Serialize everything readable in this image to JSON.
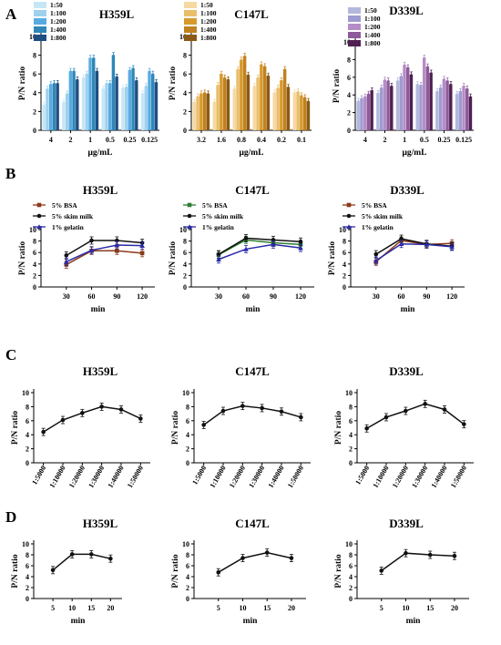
{
  "figure": {
    "panels": [
      {
        "letter": "A"
      },
      {
        "letter": "B"
      },
      {
        "letter": "C"
      },
      {
        "letter": "D"
      }
    ]
  },
  "chart_data": [
    {
      "id": "A1",
      "panel": "A",
      "type": "bar",
      "title": "H359L",
      "xlabel": "μg/mL",
      "ylabel": "P/N ratio",
      "categories": [
        "4",
        "2",
        "1",
        "0.5",
        "0.25",
        "0.125"
      ],
      "ylim": [
        0,
        10
      ],
      "yticks": [
        0,
        2,
        4,
        6,
        8,
        10
      ],
      "legend": "top-left",
      "grid": false,
      "series": [
        {
          "name": "1:50",
          "color": "#c6e6f6",
          "values": [
            2.7,
            3.0,
            5.6,
            4.4,
            4.5,
            3.9
          ]
        },
        {
          "name": "1:100",
          "color": "#9ed1ee",
          "values": [
            4.4,
            3.9,
            6.0,
            5.0,
            4.6,
            4.7
          ]
        },
        {
          "name": "1:200",
          "color": "#58abe0",
          "values": [
            4.9,
            6.3,
            7.7,
            5.0,
            6.4,
            6.3
          ]
        },
        {
          "name": "1:400",
          "color": "#2e87b8",
          "values": [
            5.0,
            6.3,
            7.7,
            8.0,
            6.6,
            6.0
          ]
        },
        {
          "name": "1:800",
          "color": "#1f4e82",
          "values": [
            5.0,
            5.4,
            6.3,
            5.7,
            5.3,
            5.1
          ]
        }
      ]
    },
    {
      "id": "A2",
      "panel": "A",
      "type": "bar",
      "title": "C147L",
      "xlabel": "μg/mL",
      "ylabel": "P/N ratio",
      "categories": [
        "3.2",
        "1.6",
        "0.8",
        "0.4",
        "0.2",
        "0.1"
      ],
      "ylim": [
        0,
        10
      ],
      "yticks": [
        0,
        2,
        4,
        6,
        8,
        10
      ],
      "legend": "top-left",
      "grid": false,
      "series": [
        {
          "name": "1:50",
          "color": "#f6d9a2",
          "values": [
            3.0,
            3.0,
            4.4,
            4.7,
            4.0,
            4.0
          ]
        },
        {
          "name": "1:100",
          "color": "#e9be6b",
          "values": [
            3.6,
            4.8,
            6.5,
            5.6,
            4.5,
            4.1
          ]
        },
        {
          "name": "1:200",
          "color": "#d79a2e",
          "values": [
            3.9,
            6.0,
            7.5,
            7.0,
            5.3,
            3.7
          ]
        },
        {
          "name": "1:400",
          "color": "#c0821f",
          "values": [
            4.0,
            5.6,
            7.9,
            6.8,
            6.5,
            3.5
          ]
        },
        {
          "name": "1:800",
          "color": "#8a5a16",
          "values": [
            3.9,
            5.4,
            5.9,
            5.8,
            4.6,
            3.1
          ]
        }
      ]
    },
    {
      "id": "A3",
      "panel": "A",
      "type": "bar",
      "title": "D339L",
      "xlabel": "μg/mL",
      "ylabel": "P/N ratio",
      "categories": [
        "4",
        "2",
        "1",
        "0.5",
        "0.25",
        "0.125"
      ],
      "ylim": [
        0,
        10
      ],
      "yticks": [
        0,
        2,
        4,
        6,
        8,
        10
      ],
      "legend": "top-left",
      "grid": false,
      "series": [
        {
          "name": "1:50",
          "color": "#b3b8dc",
          "values": [
            3.3,
            4.2,
            5.6,
            5.2,
            4.4,
            4.1
          ]
        },
        {
          "name": "1:100",
          "color": "#9d9bd1",
          "values": [
            3.6,
            4.8,
            6.1,
            5.1,
            4.8,
            4.4
          ]
        },
        {
          "name": "1:200",
          "color": "#b58dc6",
          "values": [
            3.8,
            5.7,
            7.4,
            8.2,
            5.8,
            5.0
          ]
        },
        {
          "name": "1:400",
          "color": "#8d5b99",
          "values": [
            4.1,
            5.6,
            7.1,
            7.2,
            5.6,
            4.7
          ]
        },
        {
          "name": "1:800",
          "color": "#4f1f52",
          "values": [
            4.5,
            5.0,
            6.3,
            6.5,
            5.2,
            3.8
          ]
        }
      ]
    },
    {
      "id": "B1",
      "panel": "B",
      "type": "line",
      "title": "H359L",
      "xlabel": "min",
      "ylabel": "P/N ratio",
      "x": [
        30,
        60,
        90,
        120
      ],
      "xlim": [
        0,
        135
      ],
      "xticks": [
        30,
        60,
        90,
        120
      ],
      "ylim": [
        0,
        10
      ],
      "yticks": [
        0,
        2,
        4,
        6,
        8,
        10
      ],
      "legend": "top-left",
      "grid": false,
      "series": [
        {
          "name": "5% BSA",
          "color": "#8b3a1a",
          "marker": "square",
          "values": [
            3.9,
            6.3,
            6.3,
            5.9
          ]
        },
        {
          "name": "5% skim milk",
          "color": "#111111",
          "marker": "circle",
          "values": [
            5.5,
            8.1,
            8.1,
            7.7
          ]
        },
        {
          "name": "1% gelatin",
          "color": "#2a2aa8",
          "marker": "triangle",
          "values": [
            4.4,
            6.4,
            7.3,
            7.2
          ]
        }
      ]
    },
    {
      "id": "B2",
      "panel": "B",
      "type": "line",
      "title": "C147L",
      "xlabel": "min",
      "ylabel": "P/N ratio",
      "x": [
        30,
        60,
        90,
        120
      ],
      "xlim": [
        0,
        135
      ],
      "xticks": [
        30,
        60,
        90,
        120
      ],
      "ylim": [
        0,
        10
      ],
      "yticks": [
        0,
        2,
        4,
        6,
        8,
        10
      ],
      "legend": "top-left",
      "grid": false,
      "series": [
        {
          "name": "5% BSA",
          "color": "#2e7d32",
          "marker": "square",
          "values": [
            5.6,
            8.2,
            7.7,
            7.4
          ]
        },
        {
          "name": "5% skim milk",
          "color": "#111111",
          "marker": "circle",
          "values": [
            5.7,
            8.5,
            8.2,
            7.9
          ]
        },
        {
          "name": "1% gelatin",
          "color": "#2a2aa8",
          "marker": "triangle",
          "values": [
            4.8,
            6.6,
            7.4,
            6.8
          ]
        }
      ]
    },
    {
      "id": "B3",
      "panel": "B",
      "type": "line",
      "title": "D339L",
      "xlabel": "min",
      "ylabel": "P/N ratio",
      "x": [
        30,
        60,
        90,
        120
      ],
      "xlim": [
        0,
        135
      ],
      "xticks": [
        30,
        60,
        90,
        120
      ],
      "ylim": [
        0,
        10
      ],
      "yticks": [
        0,
        2,
        4,
        6,
        8,
        10
      ],
      "legend": "top-left",
      "grid": false,
      "series": [
        {
          "name": "5% BSA",
          "color": "#8b3a1a",
          "marker": "square",
          "values": [
            4.4,
            8.1,
            7.4,
            7.6
          ]
        },
        {
          "name": "5% skim milk",
          "color": "#111111",
          "marker": "circle",
          "values": [
            5.7,
            8.4,
            7.5,
            7.1
          ]
        },
        {
          "name": "1% gelatin",
          "color": "#2a2aa8",
          "marker": "triangle",
          "values": [
            4.6,
            7.5,
            7.4,
            7.0
          ]
        }
      ]
    },
    {
      "id": "C1",
      "panel": "C",
      "type": "line",
      "title": "H359L",
      "xlabel": "",
      "ylabel": "P/N ratio",
      "categories": [
        "1:5000",
        "1:10000",
        "1:20000",
        "1:30000",
        "1:40000",
        "1:50000"
      ],
      "ylim": [
        0,
        10
      ],
      "yticks": [
        0,
        2,
        4,
        6,
        8,
        10
      ],
      "grid": false,
      "series": [
        {
          "color": "#111111",
          "marker": "circle",
          "values": [
            4.4,
            6.1,
            7.1,
            8.0,
            7.6,
            6.3
          ]
        }
      ]
    },
    {
      "id": "C2",
      "panel": "C",
      "type": "line",
      "title": "C147L",
      "xlabel": "",
      "ylabel": "P/N ratio",
      "categories": [
        "1:5000",
        "1:10000",
        "1:20000",
        "1:30000",
        "1:40000",
        "1:50000"
      ],
      "ylim": [
        0,
        10
      ],
      "yticks": [
        0,
        2,
        4,
        6,
        8,
        10
      ],
      "grid": false,
      "series": [
        {
          "color": "#111111",
          "marker": "circle",
          "values": [
            5.4,
            7.4,
            8.1,
            7.8,
            7.3,
            6.5
          ]
        }
      ]
    },
    {
      "id": "C3",
      "panel": "C",
      "type": "line",
      "title": "D339L",
      "xlabel": "",
      "ylabel": "P/N ratio",
      "categories": [
        "1:5000",
        "1:10000",
        "1:20000",
        "1:30000",
        "1:40000",
        "1:50000"
      ],
      "ylim": [
        0,
        10
      ],
      "yticks": [
        0,
        2,
        4,
        6,
        8,
        10
      ],
      "grid": false,
      "series": [
        {
          "color": "#111111",
          "marker": "circle",
          "values": [
            4.9,
            6.5,
            7.4,
            8.4,
            7.6,
            5.5
          ]
        }
      ]
    },
    {
      "id": "D1",
      "panel": "D",
      "type": "line",
      "title": "H359L",
      "xlabel": "min",
      "ylabel": "P/N ratio",
      "x": [
        5,
        10,
        15,
        20
      ],
      "xlim": [
        0,
        23
      ],
      "xticks": [
        5,
        10,
        15,
        20
      ],
      "ylim": [
        0,
        10
      ],
      "yticks": [
        0,
        2,
        4,
        6,
        8,
        10
      ],
      "grid": false,
      "series": [
        {
          "color": "#111111",
          "marker": "circle",
          "values": [
            5.2,
            8.1,
            8.1,
            7.3
          ]
        }
      ]
    },
    {
      "id": "D2",
      "panel": "D",
      "type": "line",
      "title": "C147L",
      "xlabel": "min",
      "ylabel": "P/N ratio",
      "x": [
        5,
        10,
        15,
        20
      ],
      "xlim": [
        0,
        23
      ],
      "xticks": [
        5,
        10,
        15,
        20
      ],
      "ylim": [
        0,
        10
      ],
      "yticks": [
        0,
        2,
        4,
        6,
        8,
        10
      ],
      "grid": false,
      "series": [
        {
          "color": "#111111",
          "marker": "circle",
          "values": [
            4.8,
            7.4,
            8.4,
            7.4
          ]
        }
      ]
    },
    {
      "id": "D3",
      "panel": "D",
      "type": "line",
      "title": "D339L",
      "xlabel": "min",
      "ylabel": "P/N ratio",
      "x": [
        5,
        10,
        15,
        20
      ],
      "xlim": [
        0,
        23
      ],
      "xticks": [
        5,
        10,
        15,
        20
      ],
      "ylim": [
        0,
        10
      ],
      "yticks": [
        0,
        2,
        4,
        6,
        8,
        10
      ],
      "grid": false,
      "series": [
        {
          "color": "#111111",
          "marker": "circle",
          "values": [
            5.1,
            8.3,
            8.0,
            7.8
          ]
        }
      ]
    }
  ]
}
